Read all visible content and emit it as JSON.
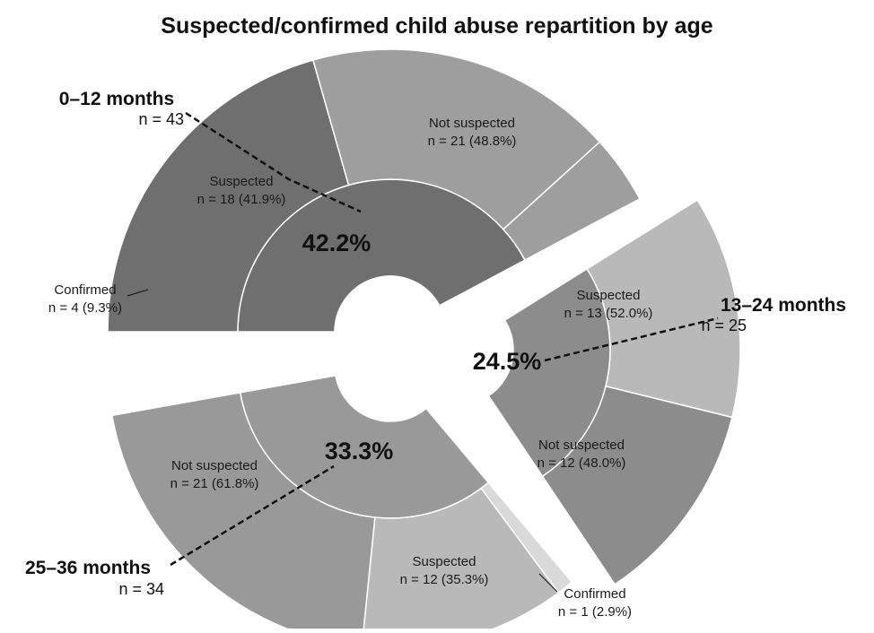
{
  "chart_data": {
    "type": "pie",
    "subtype": "exploded-sunburst",
    "title": "Suspected/confirmed child abuse repartition by age",
    "groups": [
      {
        "name": "0–12 months",
        "n_label": "n = 43",
        "n": 43,
        "share": 42.2,
        "share_label": "42.2%",
        "inner_color": "#6f6f6f",
        "segments": [
          {
            "name": "Not suspected",
            "n": 21,
            "pct": 48.8,
            "label": "n = 21 (48.8%)",
            "color": "#6f6f6f"
          },
          {
            "name": "Suspected",
            "n": 18,
            "pct": 41.9,
            "label": "n = 18 (41.9%)",
            "color": "#9e9e9e"
          },
          {
            "name": "Confirmed",
            "n": 4,
            "pct": 9.3,
            "label": "n = 4 (9.3%)",
            "color": "#9e9e9e"
          }
        ]
      },
      {
        "name": "13–24 months",
        "n_label": "n = 25",
        "n": 25,
        "share": 24.5,
        "share_label": "24.5%",
        "inner_color": "#8c8c8c",
        "segments": [
          {
            "name": "Suspected",
            "n": 13,
            "pct": 52.0,
            "label": "n = 13 (52.0%)",
            "color": "#b9b9b9"
          },
          {
            "name": "Not suspected",
            "n": 12,
            "pct": 48.0,
            "label": "n = 12 (48.0%)",
            "color": "#8c8c8c"
          }
        ]
      },
      {
        "name": "25–36 months",
        "n_label": "n = 34",
        "n": 34,
        "share": 33.3,
        "share_label": "33.3%",
        "inner_color": "#999999",
        "segments": [
          {
            "name": "Confirmed",
            "n": 1,
            "pct": 2.9,
            "label": "n = 1 (2.9%)",
            "color": "#d9d9d9"
          },
          {
            "name": "Suspected",
            "n": 12,
            "pct": 35.3,
            "label": "n = 12 (35.3%)",
            "color": "#b9b9b9"
          },
          {
            "name": "Not suspected",
            "n": 21,
            "pct": 61.8,
            "label": "n = 21 (61.8%)",
            "color": "#999999"
          }
        ]
      }
    ]
  }
}
